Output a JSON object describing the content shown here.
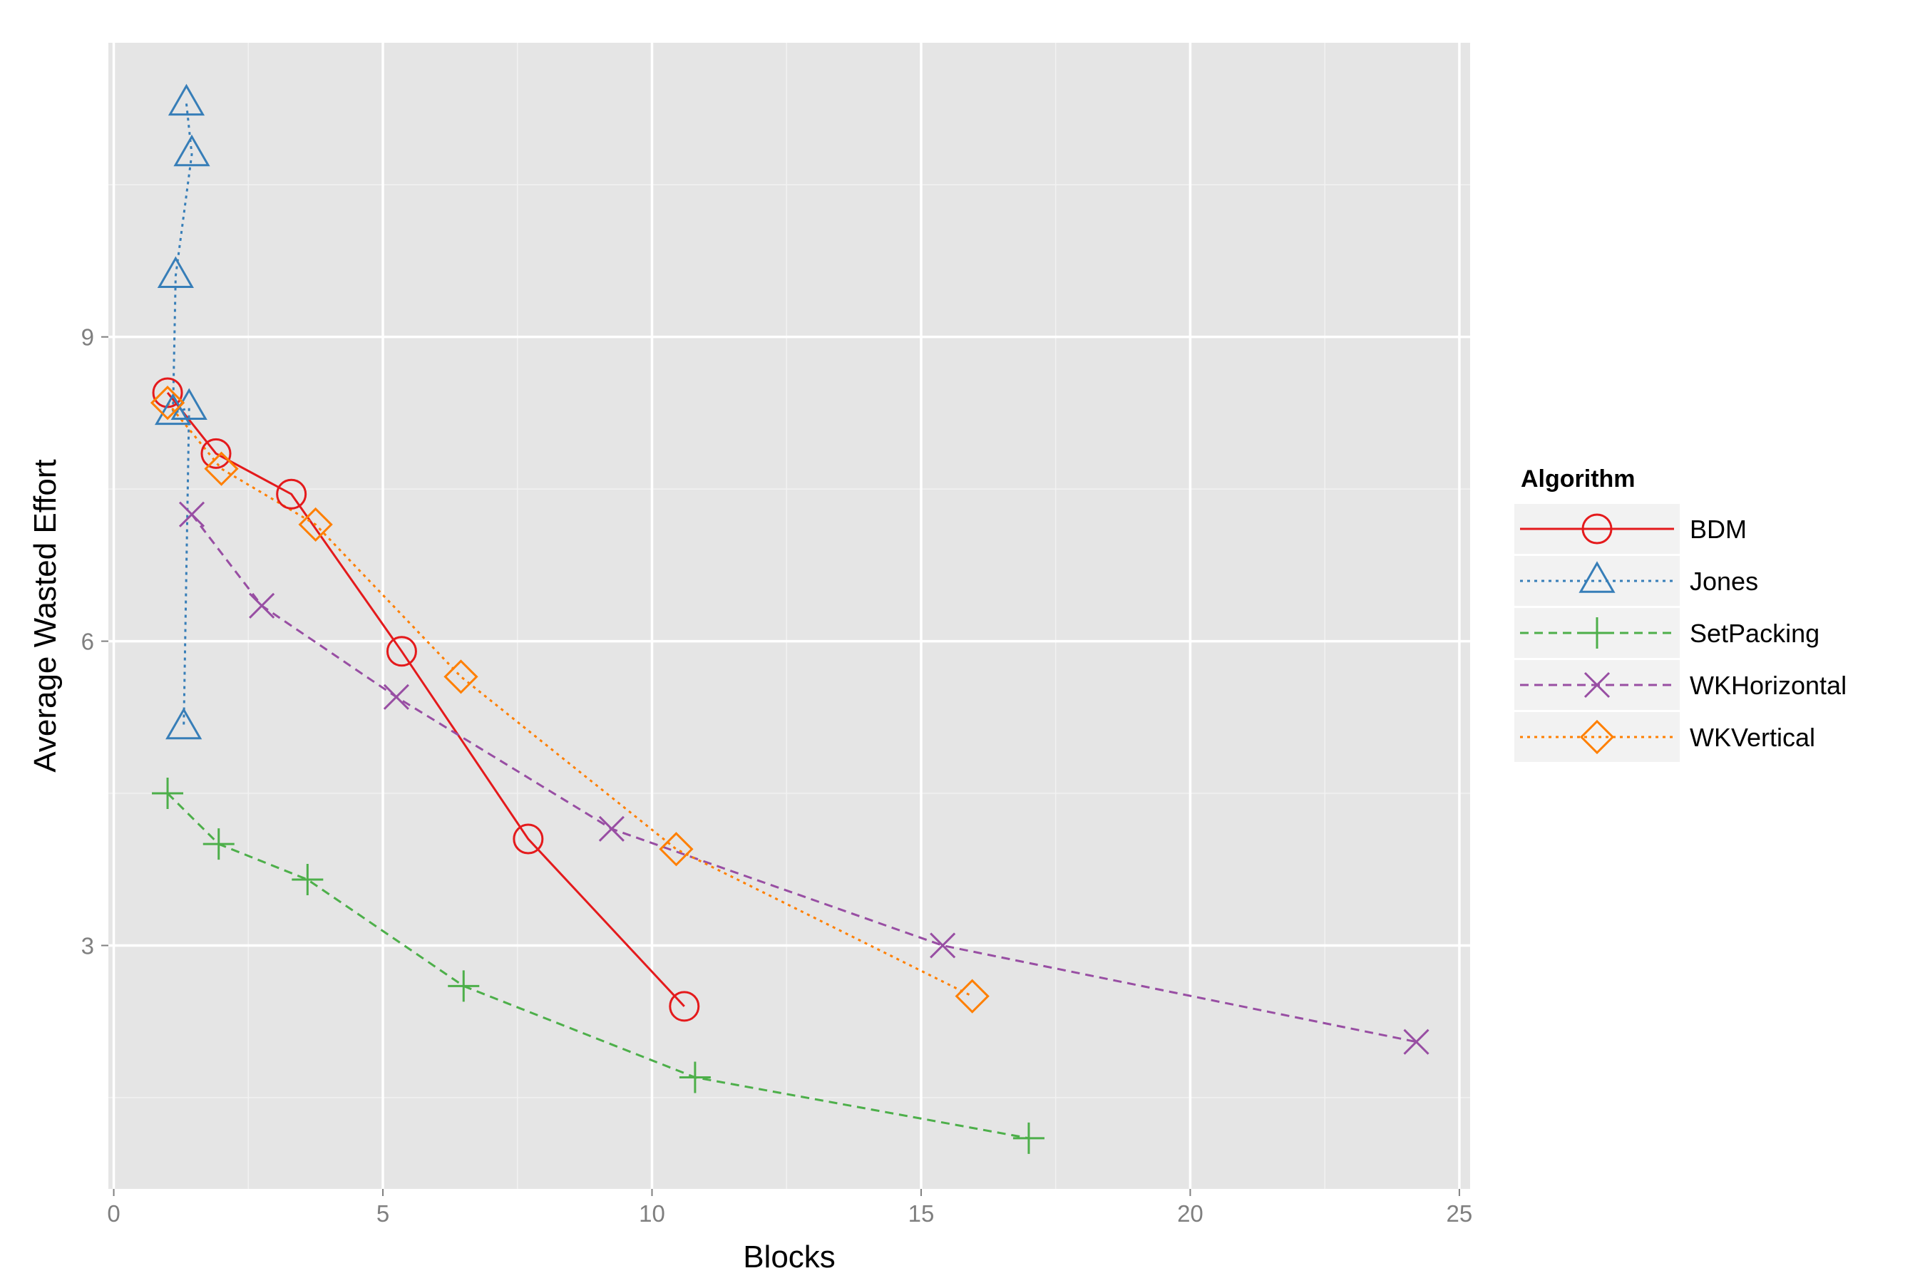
{
  "chart_data": {
    "type": "line",
    "title": "",
    "xlabel": "Blocks",
    "ylabel": "Average Wasted Effort",
    "xlim": [
      -0.1,
      25.2
    ],
    "ylim": [
      0.6,
      11.9
    ],
    "x_ticks": [
      0,
      5,
      10,
      15,
      20,
      25
    ],
    "x_tick_labels": [
      "0",
      "5",
      "10",
      "15",
      "20",
      "25"
    ],
    "y_ticks": [
      3,
      6,
      9
    ],
    "y_tick_labels": [
      "3",
      "6",
      "9"
    ],
    "grid": true,
    "legend": {
      "title": "Algorithm",
      "position": "right"
    },
    "series": [
      {
        "name": "BDM",
        "color": "#e41a1c",
        "linestyle": "solid",
        "marker": "circle",
        "points": [
          [
            1.0,
            8.45
          ],
          [
            1.9,
            7.85
          ],
          [
            3.3,
            7.45
          ],
          [
            5.35,
            5.9
          ],
          [
            7.7,
            4.05
          ],
          [
            10.6,
            2.4
          ]
        ]
      },
      {
        "name": "Jones",
        "color": "#377eb8",
        "linestyle": "dotted",
        "marker": "triangle",
        "points": [
          [
            1.35,
            11.3
          ],
          [
            1.45,
            10.8
          ],
          [
            1.15,
            9.6
          ],
          [
            1.1,
            8.25
          ],
          [
            1.4,
            8.3
          ],
          [
            1.3,
            5.15
          ]
        ]
      },
      {
        "name": "SetPacking",
        "color": "#4daf4a",
        "linestyle": "dashed",
        "marker": "plus",
        "points": [
          [
            1.0,
            4.5
          ],
          [
            1.95,
            4.0
          ],
          [
            3.6,
            3.65
          ],
          [
            6.5,
            2.6
          ],
          [
            10.8,
            1.7
          ],
          [
            17.0,
            1.1
          ]
        ]
      },
      {
        "name": "WKHorizontal",
        "color": "#984ea3",
        "linestyle": "dashed",
        "marker": "x",
        "points": [
          [
            1.45,
            7.25
          ],
          [
            2.75,
            6.35
          ],
          [
            5.25,
            5.45
          ],
          [
            9.25,
            4.15
          ],
          [
            15.4,
            3.0
          ],
          [
            24.2,
            2.05
          ]
        ]
      },
      {
        "name": "WKVertical",
        "color": "#ff7f00",
        "linestyle": "dotted",
        "marker": "diamond",
        "points": [
          [
            1.0,
            8.35
          ],
          [
            2.0,
            7.7
          ],
          [
            3.75,
            7.15
          ],
          [
            6.45,
            5.65
          ],
          [
            10.45,
            3.95
          ],
          [
            15.95,
            2.5
          ]
        ]
      }
    ]
  }
}
